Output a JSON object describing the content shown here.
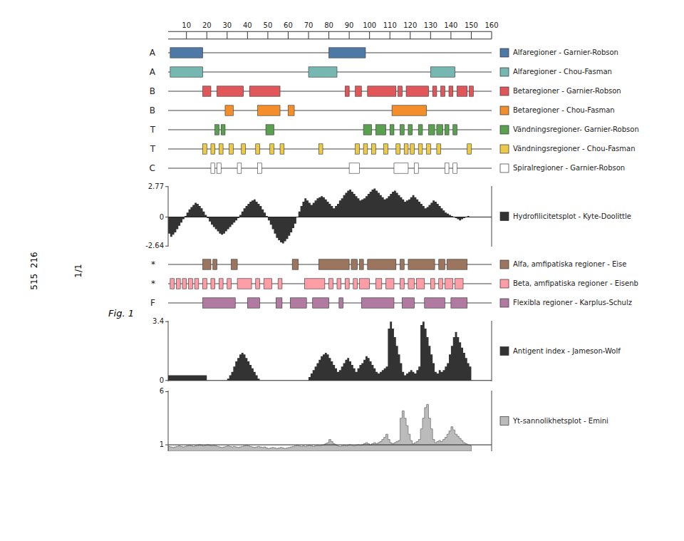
{
  "chart_data": {
    "type": "tracks",
    "annotations": [
      "515  216",
      "1/1",
      "Fig. 1"
    ],
    "x": [
      1,
      2,
      3,
      4,
      5,
      6,
      7,
      8,
      9,
      10,
      11,
      12,
      13,
      14,
      15,
      16,
      17,
      18,
      19,
      20,
      21,
      22,
      23,
      24,
      25,
      26,
      27,
      28,
      29,
      30,
      31,
      32,
      33,
      34,
      35,
      36,
      37,
      38,
      39,
      40,
      41,
      42,
      43,
      44,
      45,
      46,
      47,
      48,
      49,
      50,
      51,
      52,
      53,
      54,
      55,
      56,
      57,
      58,
      59,
      60,
      61,
      62,
      63,
      64,
      65,
      66,
      67,
      68,
      69,
      70,
      71,
      72,
      73,
      74,
      75,
      76,
      77,
      78,
      79,
      80,
      81,
      82,
      83,
      84,
      85,
      86,
      87,
      88,
      89,
      90,
      91,
      92,
      93,
      94,
      95,
      96,
      97,
      98,
      99,
      100,
      101,
      102,
      103,
      104,
      105,
      106,
      107,
      108,
      109,
      110,
      111,
      112,
      113,
      114,
      115,
      116,
      117,
      118,
      119,
      120,
      121,
      122,
      123,
      124,
      125,
      126,
      127,
      128,
      129,
      130,
      131,
      132,
      133,
      134,
      135,
      136,
      137,
      138,
      139,
      140,
      141,
      142,
      143,
      144,
      145,
      146,
      147,
      148,
      149,
      150
    ],
    "xlim": [
      1,
      160
    ],
    "xticks": [
      10,
      20,
      30,
      40,
      50,
      60,
      70,
      80,
      90,
      100,
      110,
      120,
      130,
      140,
      150,
      160
    ],
    "series": [
      {
        "type": "regions",
        "label": "A",
        "name": "Alfaregioner - Garnier-Robson",
        "color": "#4e79a7",
        "regions": [
          [
            2,
            18
          ],
          [
            80,
            98
          ]
        ]
      },
      {
        "type": "regions",
        "label": "A",
        "name": "Alfaregioner - Chou-Fasman",
        "color": "#76b7b2",
        "regions": [
          [
            2,
            18
          ],
          [
            70,
            84
          ],
          [
            130,
            142
          ]
        ]
      },
      {
        "type": "regions",
        "label": "B",
        "name": "Betaregioner - Garnier-Robson",
        "color": "#e15759",
        "regions": [
          [
            18,
            22
          ],
          [
            25,
            38
          ],
          [
            41,
            56
          ],
          [
            88,
            90
          ],
          [
            93,
            96
          ],
          [
            99,
            113
          ],
          [
            114,
            116
          ],
          [
            118,
            129
          ],
          [
            131,
            133
          ],
          [
            135,
            137
          ],
          [
            139,
            141
          ],
          [
            143,
            148
          ],
          [
            149,
            151
          ]
        ]
      },
      {
        "type": "regions",
        "label": "B",
        "name": "Betaregioner - Chou-Fasman",
        "color": "#f28e2b",
        "regions": [
          [
            29,
            33
          ],
          [
            45,
            56
          ],
          [
            60,
            63
          ],
          [
            111,
            128
          ]
        ]
      },
      {
        "type": "regions",
        "label": "T",
        "name": "Vändningsregioner- Garnier-Robson",
        "color": "#59a14f",
        "regions": [
          [
            24,
            26
          ],
          [
            27,
            29
          ],
          [
            49,
            53
          ],
          [
            97,
            101
          ],
          [
            103,
            108
          ],
          [
            110,
            112
          ],
          [
            115,
            117
          ],
          [
            119,
            121
          ],
          [
            124,
            126
          ],
          [
            129,
            132
          ],
          [
            133,
            136
          ],
          [
            137,
            139
          ],
          [
            141,
            143
          ]
        ]
      },
      {
        "type": "regions",
        "label": "T",
        "name": "Vändningsregioner - Chou-Fasman",
        "color": "#edc948",
        "regions": [
          [
            18,
            20
          ],
          [
            22,
            24
          ],
          [
            26,
            28
          ],
          [
            31,
            33
          ],
          [
            37,
            39
          ],
          [
            44,
            46
          ],
          [
            51,
            53
          ],
          [
            56,
            58
          ],
          [
            75,
            77
          ],
          [
            93,
            95
          ],
          [
            97,
            99
          ],
          [
            101,
            103
          ],
          [
            107,
            109
          ],
          [
            113,
            115
          ],
          [
            117,
            119
          ],
          [
            120,
            122
          ],
          [
            124,
            126
          ],
          [
            128,
            130
          ],
          [
            133,
            135
          ],
          [
            148,
            150
          ]
        ]
      },
      {
        "type": "regions",
        "label": "C",
        "name": "Spiralregioner - Garnier-Robson",
        "color": "#ffffff",
        "regions": [
          [
            22,
            24
          ],
          [
            25,
            27
          ],
          [
            35,
            37
          ],
          [
            45,
            47
          ],
          [
            90,
            95
          ],
          [
            112,
            119
          ],
          [
            122,
            124
          ],
          [
            137,
            139
          ],
          [
            141,
            143
          ]
        ]
      },
      {
        "type": "area",
        "name": "Hydrofilicitetsplot - Kyte-Doolittle",
        "color": "#333333",
        "ylim": [
          -2.69,
          2.82
        ],
        "yticks": [
          2.77,
          0,
          -2.64
        ],
        "baseline": 0,
        "reference_line": 0,
        "values": [
          -1.2,
          -1.5,
          -1.8,
          -1.6,
          -1.4,
          -1.1,
          -0.8,
          -0.5,
          -0.2,
          0.1,
          0.4,
          0.7,
          0.9,
          1.1,
          1.3,
          1.2,
          1.0,
          0.8,
          0.5,
          0.2,
          -0.1,
          -0.4,
          -0.7,
          -0.9,
          -1.1,
          -1.3,
          -1.5,
          -1.6,
          -1.5,
          -1.3,
          -1.1,
          -0.9,
          -0.7,
          -0.5,
          -0.3,
          -0.1,
          0.2,
          0.5,
          0.8,
          1.0,
          1.2,
          1.4,
          1.5,
          1.6,
          1.4,
          1.2,
          1.0,
          0.7,
          0.4,
          0.1,
          -0.3,
          -0.7,
          -1.1,
          -1.5,
          -1.9,
          -2.1,
          -2.3,
          -2.4,
          -2.2,
          -2.0,
          -1.7,
          -1.4,
          -1.0,
          -0.6,
          0.0,
          0.5,
          1.0,
          1.4,
          1.7,
          1.5,
          1.3,
          1.1,
          1.3,
          1.5,
          1.7,
          1.8,
          1.9,
          1.8,
          1.6,
          1.4,
          1.2,
          1.0,
          0.8,
          1.0,
          1.2,
          1.5,
          1.7,
          2.0,
          2.2,
          2.4,
          2.5,
          2.3,
          2.1,
          1.9,
          1.7,
          1.5,
          1.6,
          1.7,
          1.9,
          2.1,
          2.3,
          2.5,
          2.6,
          2.4,
          2.2,
          2.0,
          1.8,
          1.6,
          1.7,
          1.9,
          2.1,
          2.3,
          2.4,
          2.2,
          2.0,
          1.8,
          1.6,
          1.4,
          1.5,
          1.6,
          1.8,
          2.0,
          1.8,
          1.6,
          1.4,
          1.2,
          1.0,
          0.8,
          0.9,
          1.1,
          1.3,
          1.5,
          1.4,
          1.2,
          1.0,
          0.8,
          0.6,
          0.4,
          0.3,
          0.2,
          0.1,
          0.0,
          -0.1,
          -0.2,
          -0.3,
          -0.2,
          -0.1,
          0.0,
          0.1,
          0.0
        ]
      },
      {
        "type": "regions",
        "label": "*",
        "name": "Alfa, amfipatiska regioner - Eise",
        "color": "#9c755f",
        "regions": [
          [
            18,
            22
          ],
          [
            23,
            25
          ],
          [
            32,
            35
          ],
          [
            62,
            65
          ],
          [
            75,
            90
          ],
          [
            91,
            94
          ],
          [
            95,
            97
          ],
          [
            99,
            113
          ],
          [
            115,
            117
          ],
          [
            119,
            132
          ],
          [
            134,
            137
          ],
          [
            138,
            148
          ]
        ]
      },
      {
        "type": "regions",
        "label": "*",
        "name": "Beta, amfipatiska regioner - Eisenb",
        "color": "#ff9da7",
        "regions": [
          [
            2,
            4
          ],
          [
            5,
            7
          ],
          [
            8,
            10
          ],
          [
            11,
            13
          ],
          [
            14,
            16
          ],
          [
            18,
            20
          ],
          [
            22,
            24
          ],
          [
            26,
            28
          ],
          [
            30,
            32
          ],
          [
            35,
            42
          ],
          [
            44,
            46
          ],
          [
            48,
            52
          ],
          [
            55,
            57
          ],
          [
            68,
            78
          ],
          [
            80,
            82
          ],
          [
            84,
            86
          ],
          [
            88,
            90
          ],
          [
            92,
            94
          ],
          [
            95,
            100
          ],
          [
            103,
            106
          ],
          [
            108,
            112
          ],
          [
            115,
            117
          ],
          [
            119,
            122
          ],
          [
            123,
            127
          ],
          [
            130,
            132
          ],
          [
            134,
            136
          ],
          [
            137,
            141
          ],
          [
            142,
            146
          ]
        ]
      },
      {
        "type": "regions",
        "label": "F",
        "name": "Flexibla regioner - Karplus-Schulz",
        "color": "#b07aa1",
        "regions": [
          [
            18,
            34
          ],
          [
            40,
            46
          ],
          [
            54,
            57
          ],
          [
            61,
            69
          ],
          [
            72,
            80
          ],
          [
            85,
            87
          ],
          [
            96,
            112
          ],
          [
            116,
            122
          ],
          [
            127,
            137
          ],
          [
            140,
            148
          ]
        ]
      },
      {
        "type": "area",
        "name": "Antigent index - Jameson-Wolf",
        "color": "#333333",
        "ylim": [
          -0.05,
          3.45
        ],
        "yticks": [
          3.4,
          0
        ],
        "baseline": 0,
        "reference_line": 0,
        "values": [
          0.3,
          0.3,
          0.3,
          0.3,
          0.3,
          0.3,
          0.3,
          0.3,
          0.3,
          0.3,
          0.3,
          0.3,
          0.3,
          0.3,
          0.3,
          0.3,
          0.3,
          0.3,
          0.3,
          0.3,
          0.0,
          0.0,
          0.0,
          0.0,
          0.0,
          0.0,
          0.0,
          0.0,
          0.0,
          0.0,
          0.1,
          0.3,
          0.5,
          0.8,
          1.1,
          1.3,
          1.5,
          1.6,
          1.5,
          1.3,
          1.1,
          0.9,
          0.7,
          0.5,
          0.3,
          0.1,
          0.0,
          0.0,
          0.0,
          0.0,
          0.0,
          0.0,
          0.0,
          0.0,
          0.0,
          0.0,
          0.0,
          0.0,
          0.0,
          0.0,
          0.0,
          0.0,
          0.0,
          0.0,
          0.0,
          0.0,
          0.0,
          0.0,
          0.0,
          0.0,
          0.2,
          0.4,
          0.6,
          0.8,
          1.0,
          1.2,
          1.4,
          1.5,
          1.6,
          1.5,
          1.3,
          1.1,
          0.9,
          0.7,
          0.5,
          0.6,
          0.8,
          1.0,
          1.2,
          1.3,
          1.1,
          0.9,
          0.7,
          0.5,
          0.7,
          0.9,
          1.0,
          1.2,
          1.4,
          1.3,
          1.1,
          0.9,
          0.7,
          0.5,
          0.4,
          0.5,
          0.6,
          0.7,
          0.8,
          3.0,
          3.4,
          3.0,
          2.5,
          2.0,
          1.5,
          1.0,
          0.5,
          0.3,
          0.4,
          0.5,
          0.6,
          0.5,
          0.4,
          0.6,
          0.8,
          3.2,
          3.4,
          3.0,
          2.5,
          2.0,
          1.5,
          1.0,
          0.5,
          0.4,
          0.6,
          0.5,
          0.6,
          0.8,
          1.0,
          1.5,
          2.0,
          2.5,
          2.8,
          2.5,
          2.2,
          1.9,
          1.6,
          1.3,
          1.0,
          0.8
        ]
      },
      {
        "type": "area",
        "name": "Yt-sannolikhetsplot - Emini",
        "color": "#bbbbbb",
        "ylim": [
          0.4,
          6.1
        ],
        "yticks": [
          6,
          1
        ],
        "baseline": 0.4,
        "reference_line": 1.0,
        "values": [
          0.9,
          0.85,
          0.8,
          0.75,
          0.8,
          0.85,
          0.9,
          0.85,
          0.8,
          0.85,
          0.9,
          0.95,
          0.9,
          0.85,
          0.9,
          0.95,
          1.0,
          0.95,
          0.9,
          0.95,
          1.0,
          0.95,
          0.9,
          0.95,
          0.9,
          0.85,
          0.8,
          0.75,
          0.8,
          0.85,
          0.9,
          0.85,
          0.8,
          0.85,
          0.8,
          0.75,
          0.8,
          0.85,
          0.9,
          0.95,
          0.9,
          0.85,
          0.8,
          0.75,
          0.8,
          0.85,
          0.8,
          0.75,
          0.8,
          0.7,
          0.65,
          0.7,
          0.75,
          0.7,
          0.65,
          0.7,
          0.75,
          0.7,
          0.65,
          0.7,
          0.75,
          0.8,
          0.85,
          0.9,
          0.95,
          0.9,
          0.85,
          0.9,
          0.85,
          0.9,
          0.95,
          0.9,
          0.85,
          0.9,
          0.95,
          0.9,
          0.95,
          1.0,
          1.1,
          1.2,
          1.5,
          1.3,
          1.1,
          1.0,
          0.9,
          0.85,
          0.9,
          0.95,
          0.9,
          0.95,
          1.0,
          0.95,
          0.9,
          0.95,
          1.0,
          0.95,
          1.0,
          1.1,
          1.2,
          1.1,
          1.0,
          1.1,
          1.2,
          1.1,
          1.2,
          1.3,
          1.5,
          1.7,
          2.0,
          1.5,
          1.2,
          1.1,
          1.2,
          1.3,
          1.4,
          3.5,
          4.2,
          3.5,
          2.8,
          2.0,
          1.4,
          1.1,
          1.2,
          1.3,
          1.5,
          2.5,
          3.5,
          4.5,
          4.8,
          3.5,
          2.5,
          1.5,
          1.2,
          1.3,
          1.4,
          1.3,
          1.5,
          1.7,
          2.0,
          2.3,
          2.7,
          2.4,
          2.0,
          1.8,
          1.6,
          1.4,
          1.2,
          1.1,
          1.0,
          0.95
        ]
      }
    ]
  }
}
